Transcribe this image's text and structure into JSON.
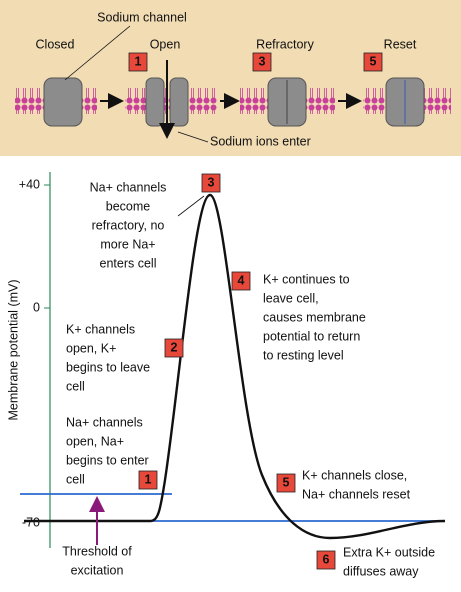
{
  "top": {
    "channel_label": "Sodium channel",
    "states": [
      "Closed",
      "Open",
      "Refractory",
      "Reset"
    ],
    "steps": [
      "1",
      "3",
      "5"
    ],
    "ions_label": "Sodium ions enter"
  },
  "graph": {
    "y_axis_label": "Membrane potential (mV)",
    "y_ticks": [
      "+40",
      "0",
      "-70"
    ],
    "annotations": [
      {
        "step": "3",
        "lines": [
          "Na+ channels",
          "become",
          "refractory, no",
          "more Na+",
          "enters cell"
        ]
      },
      {
        "step": "4",
        "lines": [
          "K+ continues to",
          "leave cell,",
          "causes membrane",
          "potential to return",
          "to resting level"
        ]
      },
      {
        "step": "2",
        "lines": [
          "K+ channels",
          "open, K+",
          "begins to leave",
          "cell"
        ]
      },
      {
        "step": "1",
        "lines": [
          "Na+ channels",
          "open, Na+",
          "begins to enter",
          "cell"
        ]
      },
      {
        "step": "5",
        "lines": [
          "K+ channels close,",
          "Na+ channels reset"
        ]
      },
      {
        "step": "6",
        "lines": [
          "Extra K+ outside",
          "diffuses away"
        ]
      }
    ],
    "threshold_label": [
      "Threshold of",
      "excitation"
    ]
  }
}
